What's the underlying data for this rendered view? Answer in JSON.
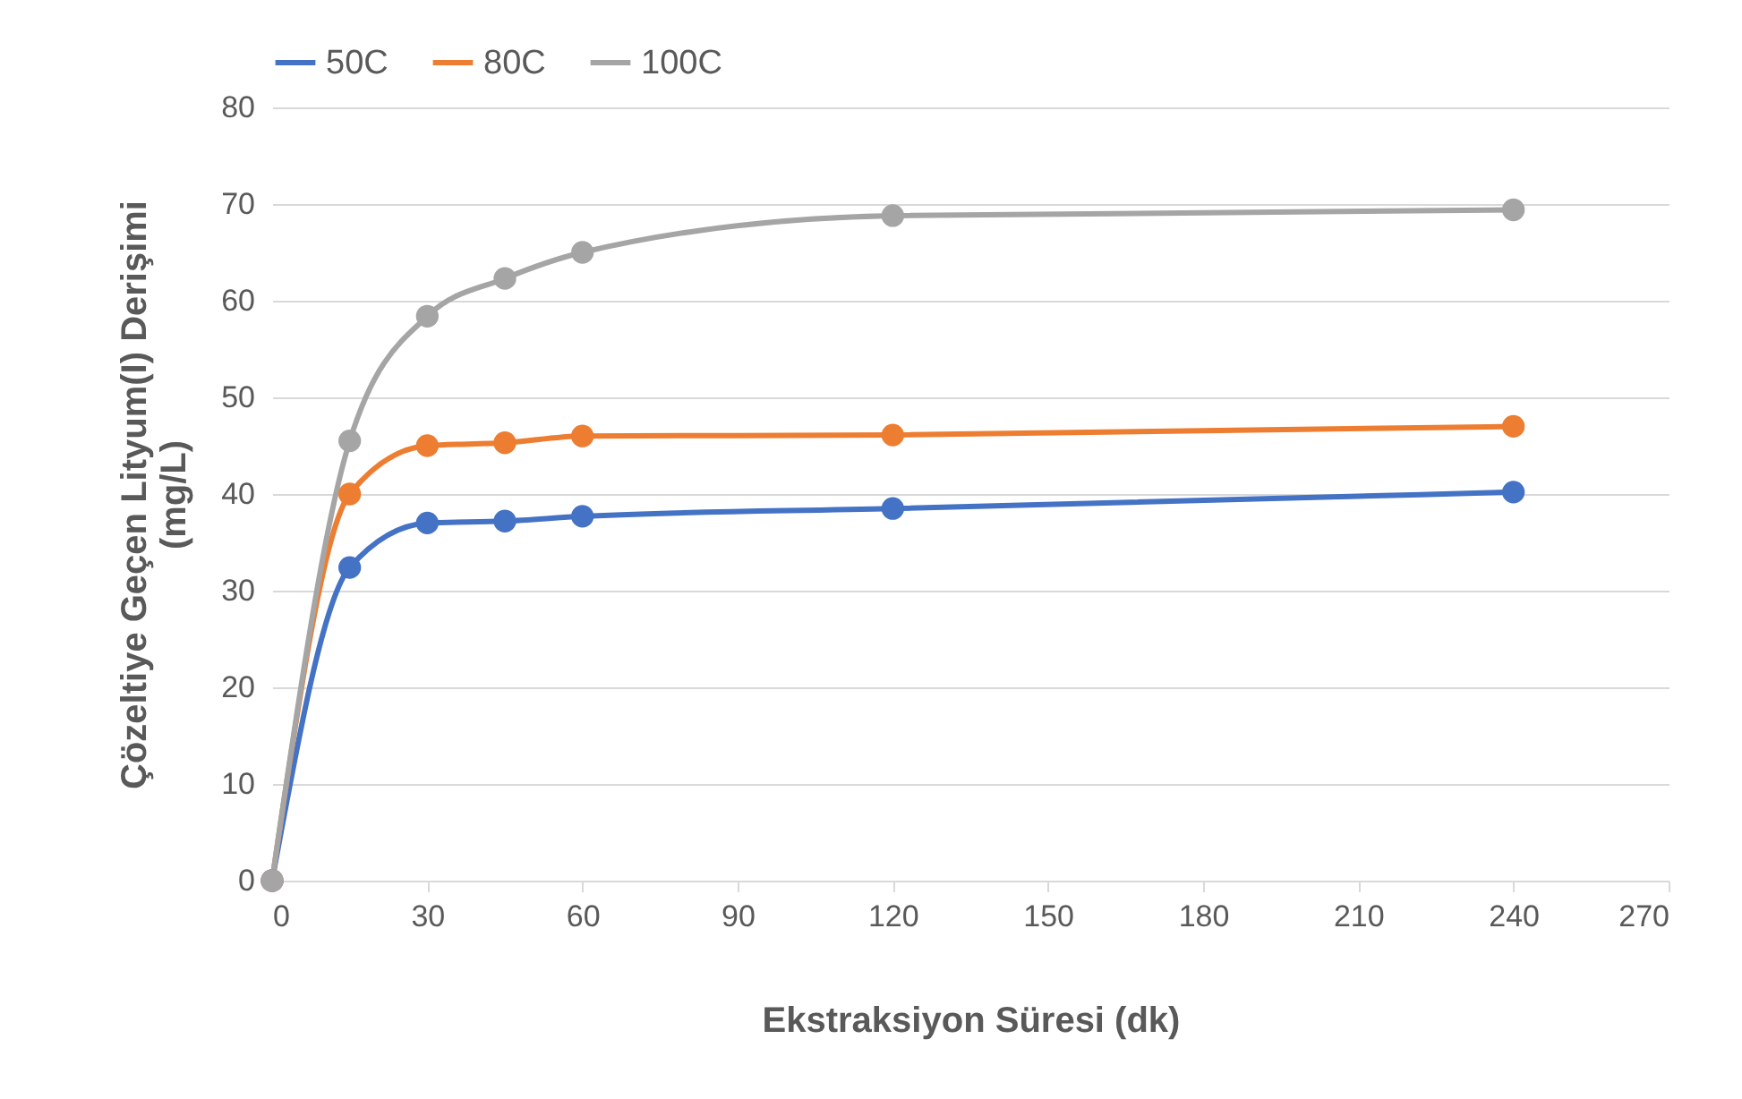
{
  "chart_data": {
    "type": "line",
    "xlabel": "Ekstraksiyon Süresi (dk)",
    "ylabel": "Çözeltiye Geçen Lityum(I) Derişimi (mg/L)",
    "x": [
      0,
      15,
      30,
      45,
      60,
      120,
      240
    ],
    "series": [
      {
        "name": "50C",
        "color": "#4472c4",
        "values": [
          0,
          32.4,
          37,
          37.2,
          37.7,
          38.5,
          40.2
        ]
      },
      {
        "name": "80C",
        "color": "#ed7d31",
        "values": [
          0,
          40,
          45,
          45.3,
          46,
          46.1,
          47
        ]
      },
      {
        "name": "100C",
        "color": "#a5a5a5",
        "values": [
          0,
          45.5,
          58.4,
          62.3,
          65,
          68.8,
          69.4
        ]
      }
    ],
    "xlim": [
      0,
      270
    ],
    "xticks": [
      0,
      30,
      60,
      90,
      120,
      150,
      180,
      210,
      240,
      270
    ],
    "ylim": [
      0,
      80
    ],
    "yticks": [
      0,
      10,
      20,
      30,
      40,
      50,
      60,
      70,
      80
    ],
    "grid": "y",
    "legend": "top",
    "marker": "circle",
    "line_style": "solid"
  }
}
